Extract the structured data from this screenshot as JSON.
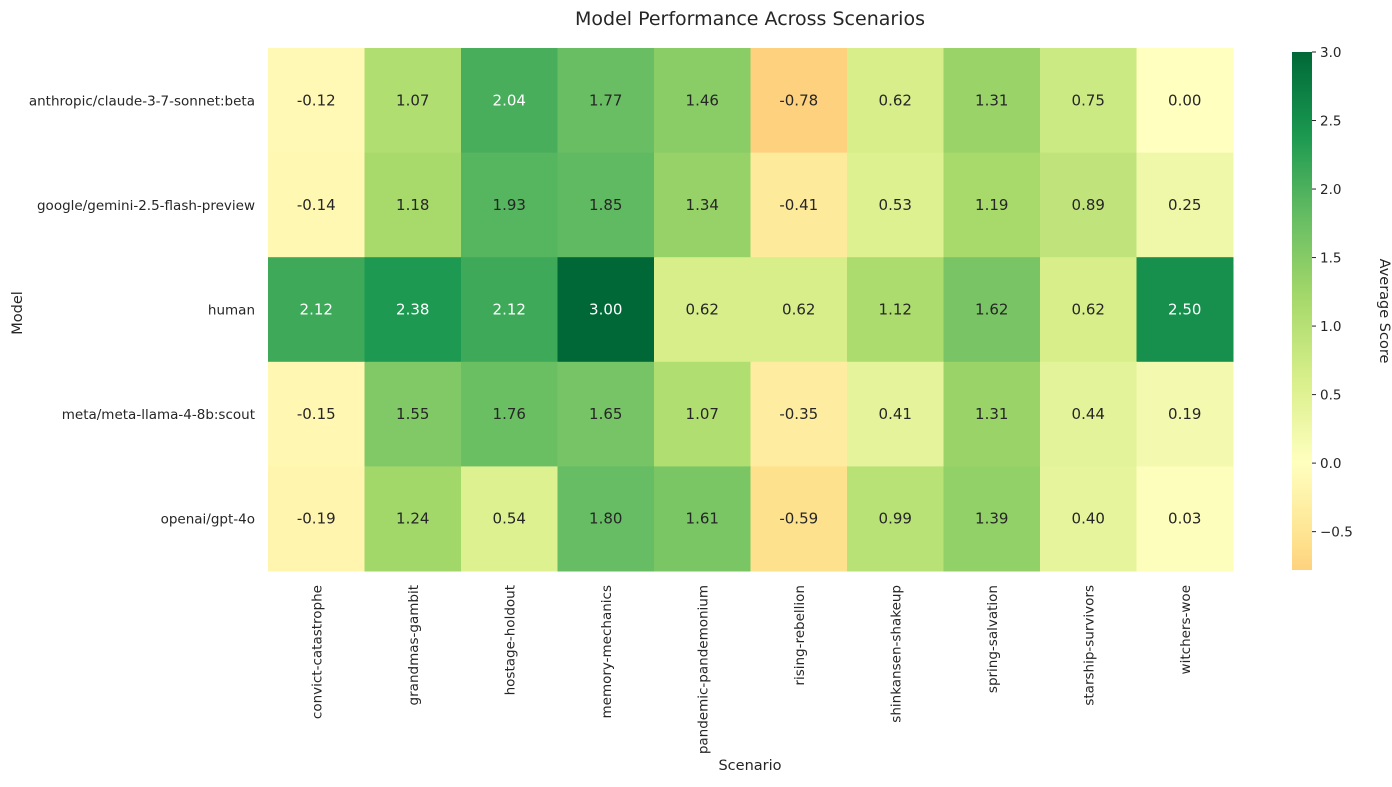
{
  "chart_data": {
    "type": "heatmap",
    "title": "Model Performance Across Scenarios",
    "xlabel": "Scenario",
    "ylabel": "Model",
    "colorbar_label": "Average Score",
    "colormap": "RdYlGn (center 0)",
    "vmin": -0.78,
    "vmax": 3.0,
    "colorbar_ticks": [
      "3.0",
      "2.5",
      "2.0",
      "1.5",
      "1.0",
      "0.5",
      "0.0",
      "−0.5"
    ],
    "colorbar_tick_values": [
      3.0,
      2.5,
      2.0,
      1.5,
      1.0,
      0.5,
      0.0,
      -0.5
    ],
    "columns": [
      "convict-catastrophe",
      "grandmas-gambit",
      "hostage-holdout",
      "memory-mechanics",
      "pandemic-pandemonium",
      "rising-rebellion",
      "shinkansen-shakeup",
      "spring-salvation",
      "starship-survivors",
      "witchers-woe"
    ],
    "rows": [
      "anthropic/claude-3-7-sonnet:beta",
      "google/gemini-2.5-flash-preview",
      "human",
      "meta/meta-llama-4-8b:scout",
      "openai/gpt-4o"
    ],
    "values": [
      [
        -0.12,
        1.07,
        2.04,
        1.77,
        1.46,
        -0.78,
        0.62,
        1.31,
        0.75,
        0.0
      ],
      [
        -0.14,
        1.18,
        1.93,
        1.85,
        1.34,
        -0.41,
        0.53,
        1.19,
        0.89,
        0.25
      ],
      [
        2.12,
        2.38,
        2.12,
        3.0,
        0.62,
        0.62,
        1.12,
        1.62,
        0.62,
        2.5
      ],
      [
        -0.15,
        1.55,
        1.76,
        1.65,
        1.07,
        -0.35,
        0.41,
        1.31,
        0.44,
        0.19
      ],
      [
        -0.19,
        1.24,
        0.54,
        1.8,
        1.61,
        -0.59,
        0.99,
        1.39,
        0.4,
        0.03
      ]
    ],
    "labels": [
      [
        "-0.12",
        "1.07",
        "2.04",
        "1.77",
        "1.46",
        "-0.78",
        "0.62",
        "1.31",
        "0.75",
        "0.00"
      ],
      [
        "-0.14",
        "1.18",
        "1.93",
        "1.85",
        "1.34",
        "-0.41",
        "0.53",
        "1.19",
        "0.89",
        "0.25"
      ],
      [
        "2.12",
        "2.38",
        "2.12",
        "3.00",
        "0.62",
        "0.62",
        "1.12",
        "1.62",
        "0.62",
        "2.50"
      ],
      [
        "-0.15",
        "1.55",
        "1.76",
        "1.65",
        "1.07",
        "-0.35",
        "0.41",
        "1.31",
        "0.44",
        "0.19"
      ],
      [
        "-0.19",
        "1.24",
        "0.54",
        "1.80",
        "1.61",
        "-0.59",
        "0.99",
        "1.39",
        "0.40",
        "0.03"
      ]
    ]
  }
}
